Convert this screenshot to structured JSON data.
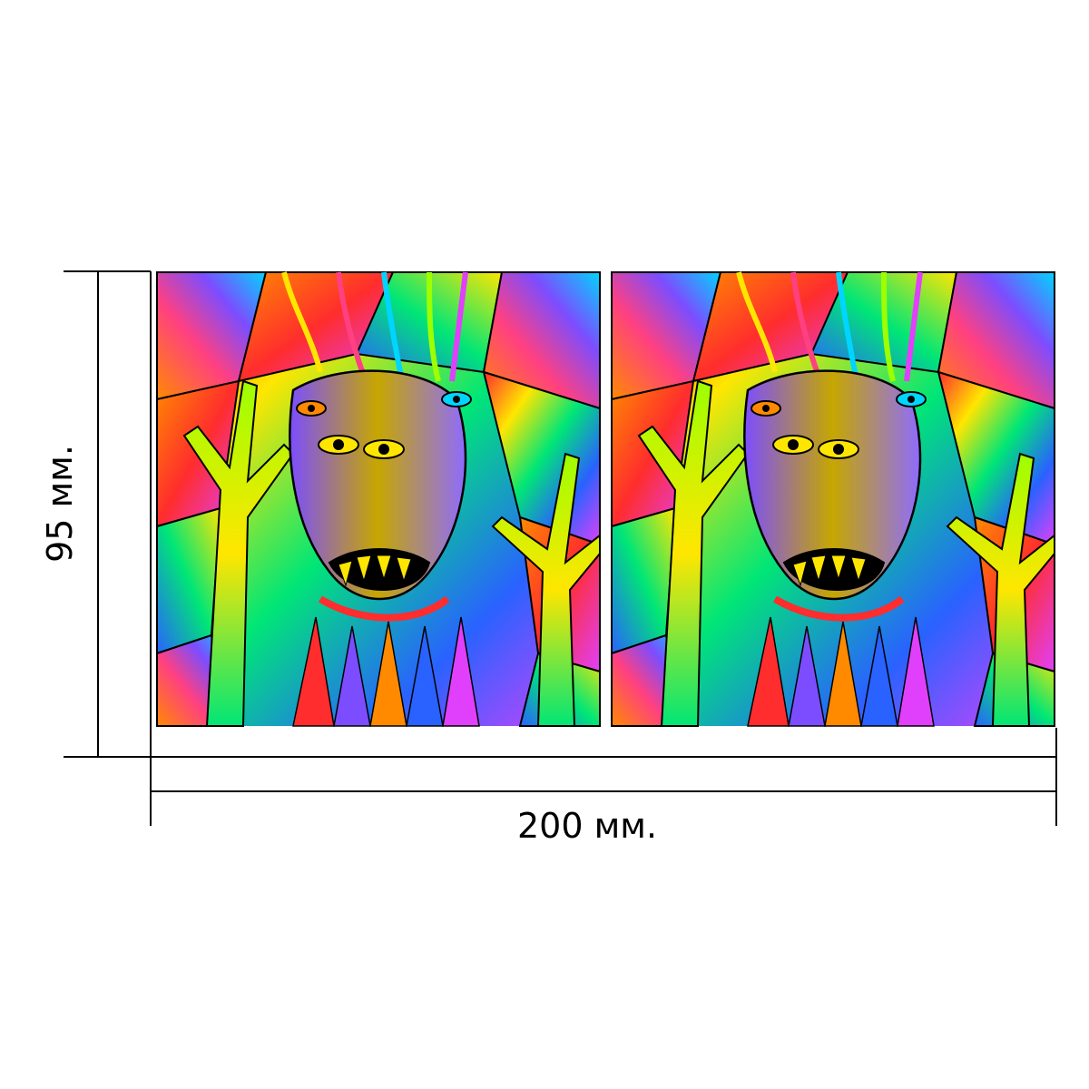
{
  "dimensions": {
    "width_label": "200 мм.",
    "height_label": "95 мм."
  },
  "panels": [
    {
      "name": "left-panel",
      "artwork": "psychedelic-forest-face"
    },
    {
      "name": "right-panel",
      "artwork": "psychedelic-forest-face"
    }
  ],
  "colors": {
    "line": "#000000",
    "background": "#ffffff",
    "palette": [
      "#ff2d2d",
      "#ff8a00",
      "#ffe600",
      "#9dff00",
      "#00e676",
      "#00d5ff",
      "#2962ff",
      "#7c4dff",
      "#e040fb",
      "#ff4081"
    ]
  }
}
